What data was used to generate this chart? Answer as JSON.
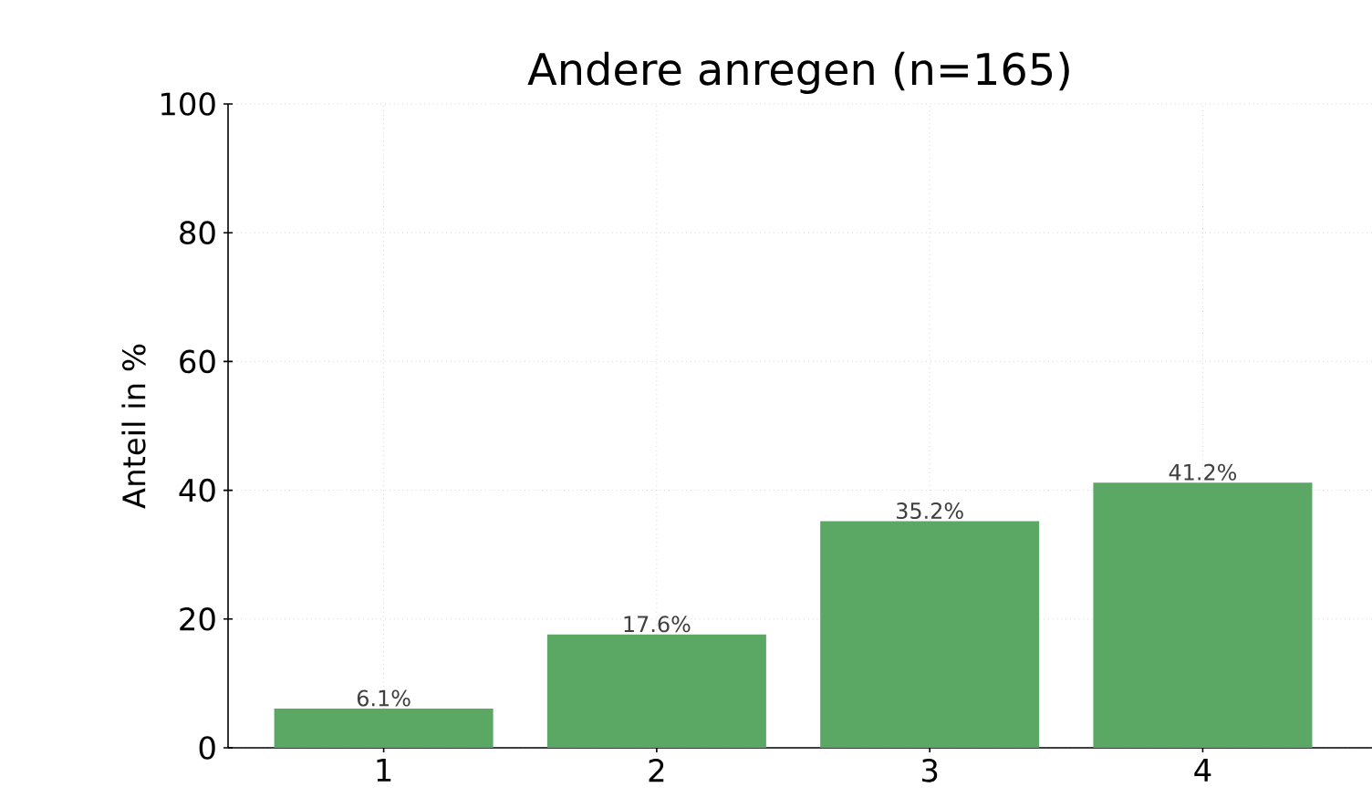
{
  "chart_data": {
    "type": "bar",
    "title": "Andere anregen (n=165)",
    "ylabel": "Anteil in %",
    "categories": [
      "1",
      "2",
      "3",
      "4"
    ],
    "values": [
      6.1,
      17.6,
      35.2,
      41.2
    ],
    "value_labels": [
      "6.1%",
      "17.6%",
      "35.2%",
      "41.2%"
    ],
    "color": "#5aa864",
    "ylim": [
      0,
      100
    ],
    "yticks": [
      0,
      20,
      40,
      60,
      80,
      100
    ],
    "grid": true
  }
}
